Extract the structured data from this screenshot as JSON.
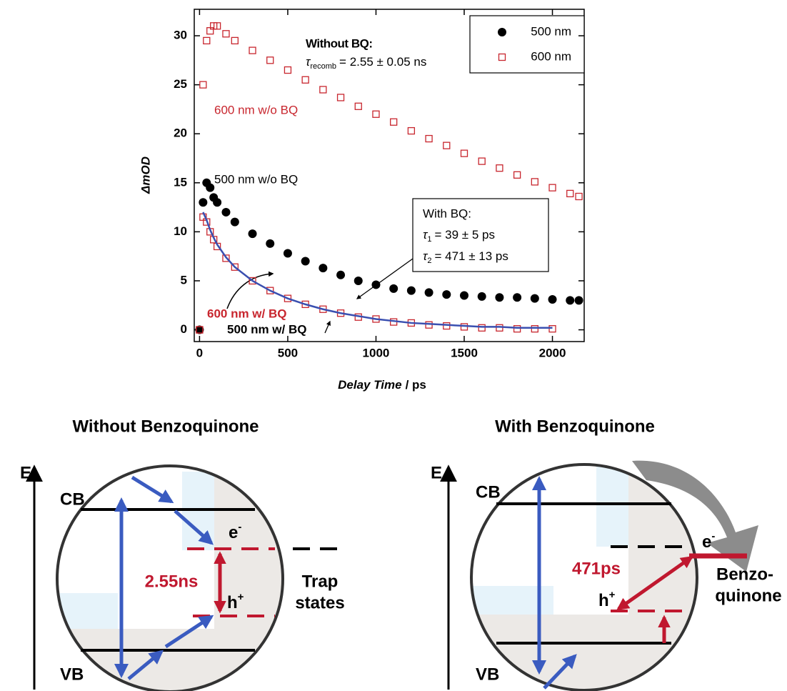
{
  "chart_data": {
    "type": "scatter",
    "x_label": {
      "italic": "Delay Time",
      "plain": "/ ps"
    },
    "y_label": "ΔmOD",
    "x": [
      0,
      20,
      40,
      60,
      80,
      100,
      150,
      200,
      300,
      400,
      500,
      600,
      700,
      800,
      900,
      1000,
      1100,
      1200,
      1300,
      1400,
      1500,
      1600,
      1700,
      1800,
      1900,
      2000,
      2100,
      2150
    ],
    "series": [
      {
        "name": "500 nm",
        "color": "#000000",
        "marker": "circle",
        "values": [
          0,
          13,
          15,
          14.5,
          13.5,
          13,
          12,
          11,
          9.8,
          8.8,
          7.8,
          7,
          6.3,
          5.6,
          5,
          4.6,
          4.2,
          4,
          3.8,
          3.6,
          3.5,
          3.4,
          3.3,
          3.3,
          3.2,
          3.1,
          3,
          3
        ]
      },
      {
        "name": "600 nm",
        "color": "#c8262e",
        "marker": "square",
        "values": [
          0,
          25,
          29.5,
          30.5,
          31,
          31,
          30.2,
          29.5,
          28.5,
          27.5,
          26.5,
          25.5,
          24.5,
          23.7,
          22.8,
          22,
          21.2,
          20.3,
          19.5,
          18.8,
          18,
          17.2,
          16.5,
          15.8,
          15.1,
          14.5,
          13.9,
          13.6
        ]
      },
      {
        "color": "#c8262e",
        "marker": "square",
        "values": [
          0,
          11.5,
          11,
          10,
          9.2,
          8.5,
          7.3,
          6.4,
          5,
          4,
          3.2,
          2.6,
          2.1,
          1.7,
          1.3,
          1.1,
          0.8,
          0.7,
          0.5,
          0.4,
          0.3,
          0.2,
          0.2,
          0.1,
          0.1,
          0.1,
          null,
          null
        ]
      },
      {
        "color": "#3a4fb0",
        "marker": "line",
        "values": [
          null,
          12,
          11.2,
          10.2,
          9.4,
          8.7,
          7.4,
          6.4,
          5,
          4,
          3.2,
          2.6,
          2.1,
          1.7,
          1.4,
          1.1,
          0.9,
          0.7,
          0.6,
          0.5,
          0.4,
          0.3,
          0.3,
          0.2,
          0.2,
          0.2,
          null,
          null
        ]
      }
    ],
    "xlim": [
      -30,
      2180
    ],
    "ylim": [
      -1.2,
      32.7
    ],
    "xticks": [
      0,
      500,
      1000,
      1500,
      2000
    ],
    "yticks": [
      0,
      5,
      10,
      15,
      20,
      25,
      30
    ],
    "annotations": {
      "without_bq": "Without BQ:",
      "recomb": {
        "symbol": "τ",
        "subscript": "recomb",
        "text": "= 2.55 ± 0.05 ns"
      },
      "with_bq": "With BQ:",
      "tau1": {
        "symbol": "τ",
        "subscript": "1",
        "text": "= 39 ± 5 ps"
      },
      "tau2": {
        "symbol": "τ",
        "subscript": "2",
        "text": "= 471 ± 13 ps"
      },
      "label_600_wo": "600 nm w/o BQ",
      "label_500_wo": "500 nm w/o BQ",
      "label_600_w": "600 nm w/ BQ",
      "label_500_w": "500 nm w/ BQ"
    }
  },
  "diagrams": [
    {
      "title": "Without Benzoquinone",
      "energy": "E",
      "cb": "CB",
      "vb": "VB",
      "electron": {
        "base": "e",
        "sup": "-"
      },
      "hole": {
        "base": "h",
        "sup": "+"
      },
      "time": "2.55ns",
      "side_label": [
        "Trap",
        "states"
      ]
    },
    {
      "title": "With Benzoquinone",
      "energy": "E",
      "cb": "CB",
      "vb": "VB",
      "electron": {
        "base": "e",
        "sup": "-"
      },
      "hole": {
        "base": "h",
        "sup": "+"
      },
      "time": "471ps",
      "side_label": [
        "Benzo-",
        "quinone"
      ]
    }
  ]
}
